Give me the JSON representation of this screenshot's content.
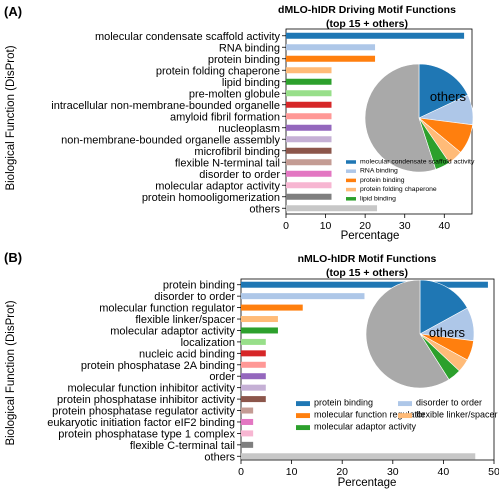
{
  "chart_data": [
    {
      "panel_label": "(A)",
      "type": "bar",
      "orientation": "horizontal",
      "title": "dMLO-hIDR Driving Motif Functions",
      "subtitle": "(top 15 + others)",
      "xlabel": "Percentage",
      "ylabel": "Biological Function (DisProt)",
      "xlim": [
        0,
        47
      ],
      "xticks": [
        0,
        10,
        20,
        30,
        40
      ],
      "categories": [
        "molecular condensate scaffold activity",
        "RNA binding",
        "protein binding",
        "protein folding chaperone",
        "lipid binding",
        "pre-molten globule",
        "intracellular non-membrane-bounded organelle",
        "amyloid fibril formation",
        "nucleoplasm",
        "non-membrane-bounded organelle assembly",
        "microfibril binding",
        "flexible N-terminal tail",
        "disorder to order",
        "molecular adaptor activity",
        "protein homooligomerization",
        "others"
      ],
      "values": [
        45,
        22.5,
        22.5,
        11.5,
        11.5,
        11.5,
        11.5,
        11.5,
        11.5,
        11.5,
        11.5,
        11.5,
        11.5,
        11.5,
        11.5,
        23
      ],
      "colors": [
        "#1f77b4",
        "#aec7e8",
        "#ff7f0e",
        "#ffbb78",
        "#2ca02c",
        "#98df8a",
        "#d62728",
        "#ff9896",
        "#9467bd",
        "#c5b0d5",
        "#8c564b",
        "#c49c94",
        "#e377c2",
        "#f7b6d2",
        "#7f7f7f",
        "#c7c7c7"
      ],
      "inset_pie": {
        "label": "others",
        "slices": [
          {
            "name": "molecular condensate scaffold activity",
            "value": 18,
            "color": "#1f77b4"
          },
          {
            "name": "RNA binding",
            "value": 9,
            "color": "#aec7e8"
          },
          {
            "name": "protein binding",
            "value": 9,
            "color": "#ff7f0e"
          },
          {
            "name": "protein folding chaperone",
            "value": 4.5,
            "color": "#ffbb78"
          },
          {
            "name": "lipid binding",
            "value": 4.5,
            "color": "#2ca02c"
          },
          {
            "name": "others",
            "value": 55,
            "color": "#a9a9a9"
          }
        ],
        "legend": [
          {
            "label": "molecular condensate scaffold activity",
            "color": "#1f77b4"
          },
          {
            "label": "RNA binding",
            "color": "#aec7e8"
          },
          {
            "label": "protein binding",
            "color": "#ff7f0e"
          },
          {
            "label": "protein folding chaperone",
            "color": "#ffbb78"
          },
          {
            "label": "lipid binding",
            "color": "#2ca02c"
          }
        ]
      }
    },
    {
      "panel_label": "(B)",
      "type": "bar",
      "orientation": "horizontal",
      "title": "nMLO-hIDR Motif Functions",
      "subtitle": "(top 15 + others)",
      "xlabel": "Percentage",
      "ylabel": "Biological Function (DisProt)",
      "xlim": [
        0,
        50
      ],
      "xticks": [
        0,
        10,
        20,
        30,
        40,
        50
      ],
      "categories": [
        "protein binding",
        "disorder to order",
        "molecular function regulator",
        "flexible linker/spacer",
        "molecular adaptor activity",
        "localization",
        "nucleic acid binding",
        "protein phosphatase 2A binding",
        "order",
        "molecular function inhibitor activity",
        "protein phosphatase inhibitor activity",
        "protein phosphatase regulator activity",
        "eukaryotic initiation factor eIF2 binding",
        "protein phosphatase type 1 complex",
        "flexible C-terminal tail",
        "others"
      ],
      "values": [
        48.8,
        24.4,
        12.2,
        7.3,
        7.3,
        4.9,
        4.9,
        4.9,
        4.9,
        4.9,
        4.9,
        2.4,
        2.4,
        2.4,
        2.4,
        46.3
      ],
      "colors": [
        "#1f77b4",
        "#aec7e8",
        "#ff7f0e",
        "#ffbb78",
        "#2ca02c",
        "#98df8a",
        "#d62728",
        "#ff9896",
        "#9467bd",
        "#c5b0d5",
        "#8c564b",
        "#c49c94",
        "#e377c2",
        "#f7b6d2",
        "#7f7f7f",
        "#c7c7c7"
      ],
      "inset_pie": {
        "label": "others",
        "slices": [
          {
            "name": "protein binding",
            "value": 17,
            "color": "#1f77b4"
          },
          {
            "name": "disorder to order",
            "value": 10,
            "color": "#aec7e8"
          },
          {
            "name": "molecular function regulator",
            "value": 6,
            "color": "#ff7f0e"
          },
          {
            "name": "flexible linker/spacer",
            "value": 4,
            "color": "#ffbb78"
          },
          {
            "name": "molecular adaptor activity",
            "value": 4,
            "color": "#2ca02c"
          },
          {
            "name": "others",
            "value": 59,
            "color": "#a9a9a9"
          }
        ],
        "legend": [
          {
            "label": "protein binding",
            "color": "#1f77b4"
          },
          {
            "label": "disorder to order",
            "color": "#aec7e8"
          },
          {
            "label": "molecular function regulator",
            "color": "#ff7f0e"
          },
          {
            "label": "flexible linker/spacer",
            "color": "#ffbb78"
          },
          {
            "label": "molecular adaptor activity",
            "color": "#2ca02c"
          }
        ]
      }
    }
  ]
}
